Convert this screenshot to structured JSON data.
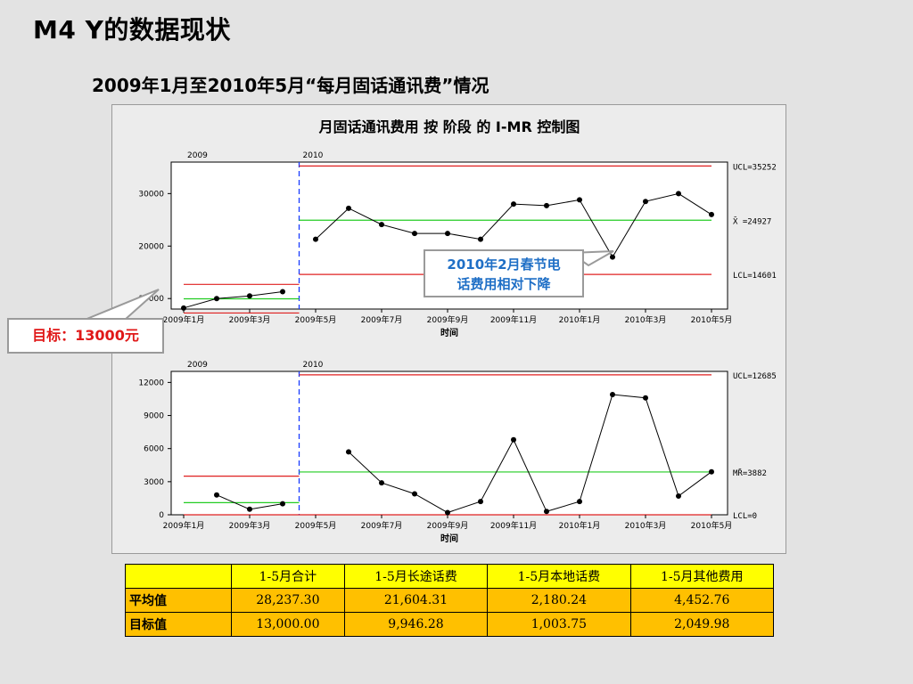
{
  "slide": {
    "title": "M4   Y的数据现状",
    "subtitle": "2009年1月至2010年5月“每月固话通讯费”情况"
  },
  "chart_data": {
    "type": "line",
    "title": "月固话通讯费用 按 阶段 的 I-MR 控制图",
    "xlabel": "时间",
    "x": [
      "2009年1月",
      "2009年2月",
      "2009年3月",
      "2009年4月",
      "2009年5月",
      "2009年6月",
      "2009年7月",
      "2009年8月",
      "2009年9月",
      "2009年10月",
      "2009年11月",
      "2009年12月",
      "2010年1月",
      "2010年2月",
      "2010年3月",
      "2010年4月",
      "2010年5月"
    ],
    "xticks": [
      "2009年1月",
      "2009年3月",
      "2009年5月",
      "2009年7月",
      "2009年9月",
      "2009年11月",
      "2010年1月",
      "2010年3月",
      "2010年5月"
    ],
    "stages": [
      {
        "name": "2009",
        "from": 0,
        "to": 3
      },
      {
        "name": "2010",
        "from": 4,
        "to": 16
      }
    ],
    "charts": [
      {
        "name": "individuals",
        "ylim": [
          8000,
          36000
        ],
        "yticks": [
          10000,
          20000,
          30000
        ],
        "values": [
          8200,
          10000,
          10500,
          11300,
          21300,
          27200,
          24100,
          22400,
          22400,
          21300,
          28000,
          27700,
          28800,
          17900,
          28500,
          30000,
          26000
        ],
        "stage_limits": [
          {
            "ucl": 12700,
            "cl": 9950,
            "lcl": 7250
          },
          {
            "ucl": 35252,
            "cl": 24927,
            "lcl": 14601
          }
        ],
        "limit_labels": [
          "UCL=35252",
          "X̄ =24927",
          "LCL=14601"
        ]
      },
      {
        "name": "moving-range",
        "ylim": [
          0,
          13000
        ],
        "yticks": [
          0,
          3000,
          6000,
          9000,
          12000
        ],
        "values": [
          null,
          1800,
          500,
          1000,
          null,
          5700,
          2900,
          1900,
          200,
          1200,
          6800,
          300,
          1200,
          10900,
          10600,
          1700,
          3900
        ],
        "stage_limits": [
          {
            "ucl": 3500,
            "cl": 1100,
            "lcl": 0
          },
          {
            "ucl": 12685,
            "cl": 3882,
            "lcl": 0
          }
        ],
        "limit_labels": [
          "UCL=12685",
          "MR̄=3882",
          "LCL=0"
        ]
      }
    ],
    "annotations": [
      "2010年2月春节电话费用相对下降",
      "目标：13000元"
    ],
    "colors": {
      "control_limit": "#e02020",
      "center_line": "#22cc22",
      "stage_divider": "#1a3cff",
      "data": "#000000"
    }
  },
  "callouts": {
    "spring_festival": [
      "2010年2月春节电",
      "话费用相对下降"
    ],
    "target": "目标：13000元"
  },
  "table": {
    "columns": [
      "",
      "1-5月合计",
      "1-5月长途话费",
      "1-5月本地话费",
      "1-5月其他费用"
    ],
    "rows": [
      {
        "label": "平均值",
        "cells": [
          "28,237.30",
          "21,604.31",
          "2,180.24",
          "4,452.76"
        ]
      },
      {
        "label": "目标值",
        "cells": [
          "13,000.00",
          "9,946.28",
          "1,003.75",
          "2,049.98"
        ]
      }
    ]
  }
}
